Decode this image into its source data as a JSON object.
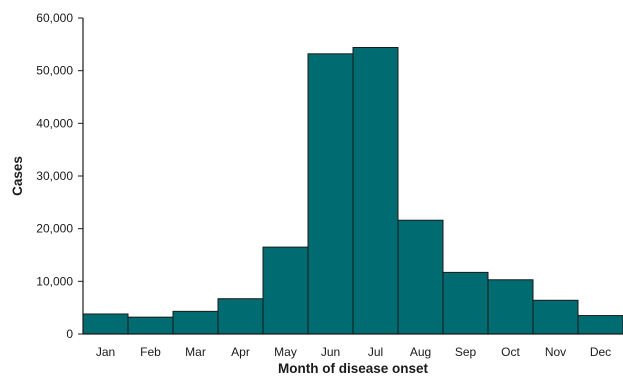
{
  "chart_data": {
    "type": "bar",
    "title": "",
    "xlabel": "Month of disease onset",
    "ylabel": "Cases",
    "categories": [
      "Jan",
      "Feb",
      "Mar",
      "Apr",
      "May",
      "Jun",
      "Jul",
      "Aug",
      "Sep",
      "Oct",
      "Nov",
      "Dec"
    ],
    "values": [
      3800,
      3200,
      4300,
      6700,
      16500,
      53200,
      54400,
      21600,
      11700,
      10300,
      6400,
      3500
    ],
    "ylim": [
      0,
      60000
    ],
    "yticks": [
      "0",
      "10,000",
      "20,000",
      "30,000",
      "40,000",
      "50,000",
      "60,000"
    ],
    "ytick_values": [
      0,
      10000,
      20000,
      30000,
      40000,
      50000,
      60000
    ],
    "grid": false,
    "bar_color": "#006b70",
    "bar_edge_color": "#1a1a1a"
  }
}
